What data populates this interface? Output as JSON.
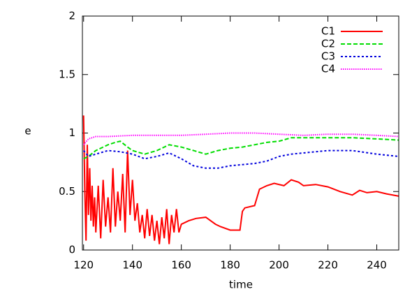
{
  "chart_data": {
    "type": "line",
    "xlabel": "time",
    "ylabel": "e",
    "xlim": [
      119.5,
      249
    ],
    "xticks": [
      120,
      140,
      160,
      180,
      200,
      220,
      240
    ],
    "ylim": [
      0,
      2
    ],
    "yticks": [
      0,
      0.5,
      1,
      1.5,
      2
    ],
    "legend": "upper right",
    "series": [
      {
        "name": "C1",
        "color": "#ff0000",
        "x": [
          120,
          120.5,
          121,
          121.5,
          122,
          122.5,
          123,
          123.5,
          124,
          124.5,
          125,
          126,
          127,
          128,
          129,
          130,
          131,
          132,
          133,
          134,
          135,
          136,
          137,
          138,
          139,
          140,
          141,
          142,
          143,
          144,
          145,
          146,
          147,
          148,
          149,
          150,
          151,
          152,
          153,
          154,
          155,
          156,
          157,
          158,
          159,
          160,
          163,
          166,
          170,
          174,
          176,
          180,
          184,
          185,
          186,
          190,
          192,
          195,
          198,
          202,
          205,
          208,
          210,
          215,
          220,
          225,
          230,
          233,
          236,
          240,
          244,
          249
        ],
        "values": [
          1.15,
          0.5,
          0.08,
          0.9,
          0.3,
          0.7,
          0.25,
          0.55,
          0.2,
          0.45,
          0.15,
          0.55,
          0.1,
          0.6,
          0.2,
          0.45,
          0.15,
          0.7,
          0.2,
          0.5,
          0.25,
          0.65,
          0.15,
          0.85,
          0.3,
          0.6,
          0.25,
          0.4,
          0.15,
          0.3,
          0.1,
          0.35,
          0.12,
          0.3,
          0.08,
          0.25,
          0.05,
          0.28,
          0.1,
          0.35,
          0.05,
          0.3,
          0.15,
          0.35,
          0.15,
          0.22,
          0.25,
          0.27,
          0.28,
          0.22,
          0.2,
          0.17,
          0.17,
          0.33,
          0.36,
          0.38,
          0.52,
          0.55,
          0.57,
          0.55,
          0.6,
          0.58,
          0.55,
          0.56,
          0.54,
          0.5,
          0.47,
          0.51,
          0.49,
          0.5,
          0.48,
          0.46
        ]
      },
      {
        "name": "C2",
        "color": "#00dd00",
        "x": [
          120,
          122,
          125,
          128,
          130,
          133,
          135,
          138,
          140,
          145,
          150,
          155,
          160,
          165,
          170,
          175,
          180,
          185,
          190,
          195,
          200,
          205,
          210,
          220,
          230,
          240,
          249
        ],
        "values": [
          0.78,
          0.8,
          0.85,
          0.88,
          0.9,
          0.92,
          0.93,
          0.88,
          0.85,
          0.82,
          0.85,
          0.9,
          0.88,
          0.85,
          0.82,
          0.85,
          0.87,
          0.88,
          0.9,
          0.92,
          0.93,
          0.96,
          0.96,
          0.96,
          0.96,
          0.95,
          0.94
        ]
      },
      {
        "name": "C3",
        "color": "#0000dd",
        "x": [
          120,
          122,
          125,
          130,
          135,
          140,
          145,
          150,
          155,
          160,
          165,
          170,
          175,
          180,
          185,
          190,
          195,
          200,
          205,
          210,
          220,
          230,
          240,
          249
        ],
        "values": [
          0.85,
          0.8,
          0.82,
          0.85,
          0.84,
          0.82,
          0.78,
          0.8,
          0.83,
          0.78,
          0.72,
          0.7,
          0.7,
          0.72,
          0.73,
          0.74,
          0.76,
          0.8,
          0.82,
          0.83,
          0.85,
          0.85,
          0.82,
          0.8
        ]
      },
      {
        "name": "C4",
        "color": "#ff00ff",
        "x": [
          120,
          122,
          125,
          130,
          140,
          150,
          160,
          170,
          180,
          190,
          200,
          210,
          220,
          230,
          240,
          249
        ],
        "values": [
          0.9,
          0.95,
          0.97,
          0.97,
          0.98,
          0.98,
          0.98,
          0.99,
          1.0,
          1.0,
          0.99,
          0.98,
          0.99,
          0.99,
          0.98,
          0.97
        ]
      }
    ]
  }
}
